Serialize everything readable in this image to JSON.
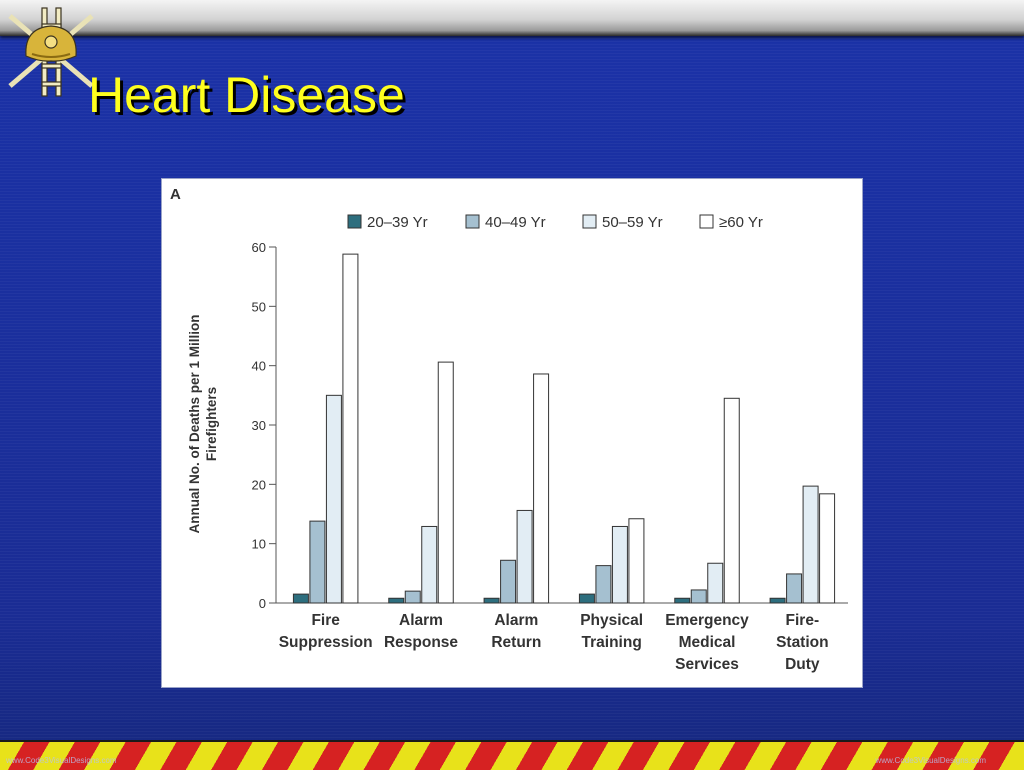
{
  "slide": {
    "title": "Heart Disease",
    "footer_left": "www.Code3VisualDesigns.com",
    "footer_right": "www.Code3VisualDesigns.com"
  },
  "colors": {
    "title": "#ffff1e",
    "background": "#1a2f9e",
    "series": [
      "#2d6e7e",
      "#a5c0d0",
      "#e2edf4",
      "#ffffff"
    ]
  },
  "chart_data": {
    "type": "bar",
    "panel_label": "A",
    "categories": [
      [
        "Fire",
        "Suppression"
      ],
      [
        "Alarm",
        "Response"
      ],
      [
        "Alarm",
        "Return"
      ],
      [
        "Physical",
        "Training"
      ],
      [
        "Emergency",
        "Medical",
        "Services"
      ],
      [
        "Fire-",
        "Station",
        "Duty"
      ]
    ],
    "series": [
      {
        "name": "20–39 Yr",
        "values": [
          1.5,
          0.8,
          0.8,
          1.5,
          0.8,
          0.8
        ]
      },
      {
        "name": "40–49 Yr",
        "values": [
          13.8,
          2.0,
          7.2,
          6.3,
          2.2,
          4.9
        ]
      },
      {
        "name": "50–59 Yr",
        "values": [
          35.0,
          12.9,
          15.6,
          12.9,
          6.7,
          19.7
        ]
      },
      {
        "name": "≥60 Yr",
        "values": [
          58.8,
          40.6,
          38.6,
          14.2,
          34.5,
          18.4
        ]
      }
    ],
    "ylabel": [
      "Annual No. of Deaths per 1 Million",
      "Firefighters"
    ],
    "ylim": [
      0,
      60
    ],
    "yticks": [
      0,
      10,
      20,
      30,
      40,
      50,
      60
    ],
    "grid": false,
    "legend_position": "top"
  }
}
